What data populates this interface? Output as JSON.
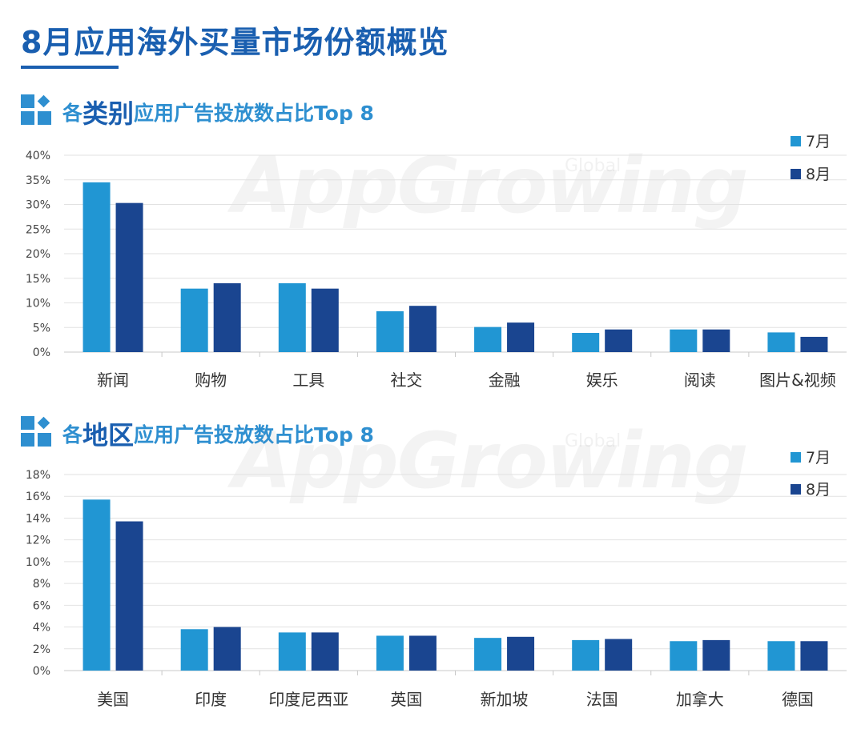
{
  "page": {
    "title": "8月应用海外买量市场份额概览"
  },
  "watermark": {
    "brand": "AppGrowing",
    "sub": "Global"
  },
  "colors": {
    "july": "#2196d3",
    "august": "#1a4590",
    "accent": "#1a5fb0"
  },
  "sections": [
    {
      "title_pre": "各",
      "title_key": "类别",
      "title_post": "应用广告投放数占比Top 8"
    },
    {
      "title_pre": "各",
      "title_key": "地区",
      "title_post": "应用广告投放数占比Top 8"
    }
  ],
  "chart_data": [
    {
      "type": "bar",
      "categories": [
        "新闻",
        "购物",
        "工具",
        "社交",
        "金融",
        "娱乐",
        "阅读",
        "图片&视频"
      ],
      "series": [
        {
          "name": "7月",
          "values": [
            34.5,
            12.9,
            14.0,
            8.3,
            5.1,
            3.9,
            4.6,
            4.0
          ]
        },
        {
          "name": "8月",
          "values": [
            30.3,
            14.0,
            12.9,
            9.4,
            6.0,
            4.6,
            4.6,
            3.1
          ]
        }
      ],
      "ylim": [
        0,
        40
      ],
      "yticks": [
        "0%",
        "5%",
        "10%",
        "15%",
        "20%",
        "25%",
        "30%",
        "35%",
        "40%"
      ],
      "grid": true,
      "legend": "top-right"
    },
    {
      "type": "bar",
      "categories": [
        "美国",
        "印度",
        "印度尼西亚",
        "英国",
        "新加坡",
        "法国",
        "加拿大",
        "德国"
      ],
      "series": [
        {
          "name": "7月",
          "values": [
            15.7,
            3.8,
            3.5,
            3.2,
            3.0,
            2.8,
            2.7,
            2.7
          ]
        },
        {
          "name": "8月",
          "values": [
            13.7,
            4.0,
            3.5,
            3.2,
            3.1,
            2.9,
            2.8,
            2.7
          ]
        }
      ],
      "ylim": [
        0,
        18
      ],
      "yticks": [
        "0%",
        "2%",
        "4%",
        "6%",
        "8%",
        "10%",
        "12%",
        "14%",
        "16%",
        "18%"
      ],
      "grid": true,
      "legend": "top-right"
    }
  ]
}
